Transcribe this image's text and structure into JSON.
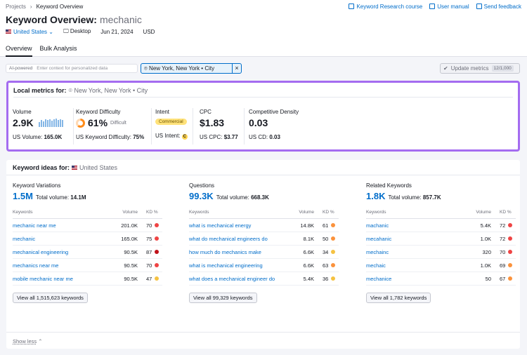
{
  "breadcrumb": {
    "parent": "Projects",
    "separator": "›",
    "current": "Keyword Overview"
  },
  "top_links": [
    {
      "label": "Keyword Research course",
      "icon": "graduation-cap-icon"
    },
    {
      "label": "User manual",
      "icon": "book-icon"
    },
    {
      "label": "Send feedback",
      "icon": "chat-icon"
    }
  ],
  "header": {
    "title": "Keyword Overview:",
    "keyword": "mechanic"
  },
  "meta": {
    "database": "United States",
    "device": "Desktop",
    "date": "Jun 21, 2024",
    "currency": "USD"
  },
  "tabs": [
    {
      "label": "Overview",
      "active": true
    },
    {
      "label": "Bulk Analysis",
      "active": false
    }
  ],
  "filter": {
    "ai_label": "AI-powered",
    "ai_placeholder": "Enter context for personalized data",
    "location": "New York, New York • City",
    "location_clear": "×",
    "update_label": "Update metrics",
    "update_count": "12/1,000"
  },
  "local": {
    "title": "Local metrics for:",
    "location": "New York, New York • City",
    "volume": {
      "label": "Volume",
      "value": "2.9K",
      "sub_label": "US Volume:",
      "sub_value": "165.0K",
      "trend": [
        0.55,
        0.8,
        0.7,
        0.9,
        0.85,
        0.95,
        0.75,
        0.9,
        1.0,
        0.85,
        0.9,
        0.8
      ]
    },
    "kd": {
      "label": "Keyword Difficulty",
      "value": "61%",
      "tag": "Difficult",
      "percent": 61,
      "sub_label": "US Keyword Difficulty:",
      "sub_value": "75%"
    },
    "intent": {
      "label": "Intent",
      "badge": "Commercial",
      "sub_label": "US Intent:",
      "sub_badge": "C"
    },
    "cpc": {
      "label": "CPC",
      "value": "$1.83",
      "sub_label": "US CPC:",
      "sub_value": "$3.77"
    },
    "cd": {
      "label": "Competitive Density",
      "value": "0.03",
      "sub_label": "US CD:",
      "sub_value": "0.03"
    }
  },
  "ideas": {
    "title": "Keyword ideas for:",
    "country": "United States",
    "columns": [
      {
        "title": "Keyword Variations",
        "count": "1.5M",
        "total_label": "Total volume:",
        "total": "14.1M",
        "headers": [
          "Keywords",
          "Volume",
          "KD %"
        ],
        "rows": [
          {
            "kw": "mechanic near me",
            "vol": "201.0K",
            "kd": "70",
            "color": "#ef4444"
          },
          {
            "kw": "mechanic",
            "vol": "165.0K",
            "kd": "75",
            "color": "#ef4444"
          },
          {
            "kw": "mechanical engineering",
            "vol": "90.5K",
            "kd": "87",
            "color": "#c0121a"
          },
          {
            "kw": "mechanics near me",
            "vol": "90.5K",
            "kd": "70",
            "color": "#ef4444"
          },
          {
            "kw": "mobile mechanic near me",
            "vol": "90.5K",
            "kd": "47",
            "color": "#f5c242"
          }
        ],
        "view_all": "View all 1,515,623 keywords"
      },
      {
        "title": "Questions",
        "count": "99.3K",
        "total_label": "Total volume:",
        "total": "668.3K",
        "headers": [
          "Keywords",
          "Volume",
          "KD %"
        ],
        "rows": [
          {
            "kw": "what is mechanical energy",
            "vol": "14.8K",
            "kd": "61",
            "color": "#fb923c"
          },
          {
            "kw": "what do mechanical engineers do",
            "vol": "8.1K",
            "kd": "50",
            "color": "#fb923c"
          },
          {
            "kw": "how much do mechanics make",
            "vol": "6.6K",
            "kd": "34",
            "color": "#f5c242"
          },
          {
            "kw": "what is mechanical engineering",
            "vol": "6.6K",
            "kd": "63",
            "color": "#fb923c"
          },
          {
            "kw": "what does a mechanical engineer do",
            "vol": "5.4K",
            "kd": "36",
            "color": "#f5c242"
          }
        ],
        "view_all": "View all 99,329 keywords"
      },
      {
        "title": "Related Keywords",
        "count": "1.8K",
        "total_label": "Total volume:",
        "total": "857.7K",
        "headers": [
          "Keywords",
          "Volume",
          "KD %"
        ],
        "rows": [
          {
            "kw": "machanic",
            "vol": "5.4K",
            "kd": "72",
            "color": "#ef4444"
          },
          {
            "kw": "mecahanic",
            "vol": "1.0K",
            "kd": "72",
            "color": "#ef4444"
          },
          {
            "kw": "mechainc",
            "vol": "320",
            "kd": "70",
            "color": "#ef4444"
          },
          {
            "kw": "mechaic",
            "vol": "1.0K",
            "kd": "69",
            "color": "#fb923c"
          },
          {
            "kw": "mechanice",
            "vol": "50",
            "kd": "67",
            "color": "#fb923c"
          }
        ],
        "view_all": "View all 1,782 keywords"
      }
    ],
    "show_less": "Show less"
  }
}
